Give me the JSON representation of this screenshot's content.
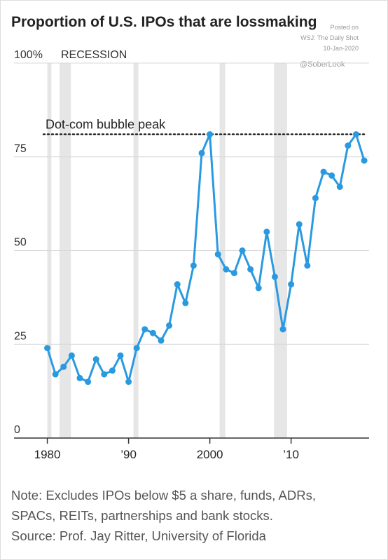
{
  "chart_data": {
    "type": "line",
    "title": "Proportion of U.S. IPOs that are lossmaking",
    "watermark": [
      "Posted on",
      "WSJ: The Daily Shot",
      "10-Jan-2020",
      "@SoberLook"
    ],
    "recession_label": "RECESSION",
    "recessions": [
      [
        1980.0,
        1980.5
      ],
      [
        1981.5,
        1982.9
      ],
      [
        1990.6,
        1991.2
      ],
      [
        2001.2,
        2001.9
      ],
      [
        2007.9,
        2009.5
      ]
    ],
    "recession_color": "#e6e6e6",
    "peak_line": 81,
    "peak_label": "Dot-com bubble peak",
    "x": [
      1980,
      1981,
      1982,
      1983,
      1984,
      1985,
      1986,
      1987,
      1988,
      1989,
      1990,
      1991,
      1992,
      1993,
      1994,
      1995,
      1996,
      1997,
      1998,
      1999,
      2000,
      2001,
      2002,
      2003,
      2004,
      2005,
      2006,
      2007,
      2008,
      2009,
      2010,
      2011,
      2012,
      2013,
      2014,
      2015,
      2016,
      2017,
      2018,
      2019
    ],
    "series": [
      {
        "name": "Lossmaking IPOs",
        "color": "#2a9ae0",
        "values": [
          24,
          17,
          19,
          22,
          16,
          15,
          21,
          17,
          18,
          22,
          15,
          24,
          29,
          28,
          26,
          30,
          41,
          36,
          46,
          76,
          81,
          49,
          45,
          44,
          50,
          45,
          40,
          55,
          43,
          29,
          41,
          57,
          46,
          64,
          71,
          70,
          67,
          78,
          81,
          74
        ]
      }
    ],
    "xlim": [
      1975.9,
      2019.6
    ],
    "xticks": [
      1980,
      {
        "value": 1990,
        "label": "’90"
      },
      2000,
      {
        "value": 2010,
        "label": "’10"
      }
    ],
    "ylim": [
      0,
      100
    ],
    "yticks": [
      0,
      25,
      50,
      75,
      {
        "value": 100,
        "label": "100%"
      }
    ],
    "grid": true,
    "notes": [
      "Note: Excludes IPOs below $5 a share, funds, ADRs,",
      "SPACs, REITs, partnerships and bank stocks.",
      "Source: Prof. Jay Ritter, University of Florida"
    ]
  }
}
